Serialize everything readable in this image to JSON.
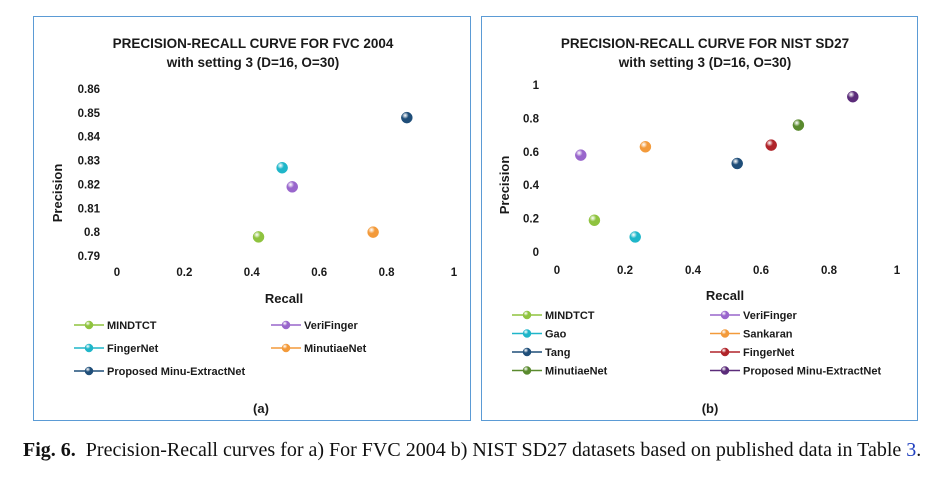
{
  "chart_data": [
    {
      "type": "scatter",
      "title": "PRECISION-RECALL CURVE FOR FVC 2004",
      "subtitle": "with setting 3 (D=16, O=30)",
      "xlabel": "Recall",
      "ylabel": "Precision",
      "xlim": [
        0,
        1
      ],
      "ylim": [
        0.79,
        0.86
      ],
      "xticks": [
        "0",
        "0.2",
        "0.4",
        "0.6",
        "0.8",
        "1"
      ],
      "yticks": [
        "0.79",
        "0.8",
        "0.81",
        "0.82",
        "0.83",
        "0.84",
        "0.85",
        "0.86"
      ],
      "series": [
        {
          "name": "MINDTCT",
          "x": 0.42,
          "y": 0.798,
          "color": "#8fc33f"
        },
        {
          "name": "VeriFinger",
          "x": 0.52,
          "y": 0.819,
          "color": "#9966cc"
        },
        {
          "name": "FingerNet",
          "x": 0.49,
          "y": 0.827,
          "color": "#1fb6c9"
        },
        {
          "name": "MinutiaeNet",
          "x": 0.76,
          "y": 0.8,
          "color": "#f39a3a"
        },
        {
          "name": "Proposed Minu-ExtractNet",
          "x": 0.86,
          "y": 0.848,
          "color": "#1f4e79"
        }
      ],
      "panel_label": "(a)"
    },
    {
      "type": "scatter",
      "title": "PRECISION-RECALL CURVE FOR NIST SD27",
      "subtitle": "with setting 3 (D=16, O=30)",
      "xlabel": "Recall",
      "ylabel": "Precision",
      "xlim": [
        0,
        1
      ],
      "ylim": [
        0,
        1
      ],
      "xticks": [
        "0",
        "0.2",
        "0.4",
        "0.6",
        "0.8",
        "1"
      ],
      "yticks": [
        "0",
        "0.2",
        "0.4",
        "0.6",
        "0.8",
        "1"
      ],
      "series": [
        {
          "name": "MINDTCT",
          "x": 0.11,
          "y": 0.19,
          "color": "#8fc33f"
        },
        {
          "name": "VeriFinger",
          "x": 0.07,
          "y": 0.58,
          "color": "#9966cc"
        },
        {
          "name": "Gao",
          "x": 0.23,
          "y": 0.09,
          "color": "#1fb6c9"
        },
        {
          "name": "Sankaran",
          "x": 0.26,
          "y": 0.63,
          "color": "#f39a3a"
        },
        {
          "name": "Tang",
          "x": 0.53,
          "y": 0.53,
          "color": "#1f4e79"
        },
        {
          "name": "FingerNet",
          "x": 0.63,
          "y": 0.64,
          "color": "#b0242a"
        },
        {
          "name": "MinutiaeNet",
          "x": 0.71,
          "y": 0.76,
          "color": "#5a8a2e"
        },
        {
          "name": "Proposed Minu-ExtractNet",
          "x": 0.87,
          "y": 0.93,
          "color": "#5b2c7a"
        }
      ],
      "panel_label": "(b)"
    }
  ],
  "caption": {
    "label": "Fig. 6.",
    "text_before": "Precision-Recall curves for a) For FVC 2004 b) NIST SD27 datasets based on published data in Table",
    "ref": "3",
    "text_after": "."
  }
}
